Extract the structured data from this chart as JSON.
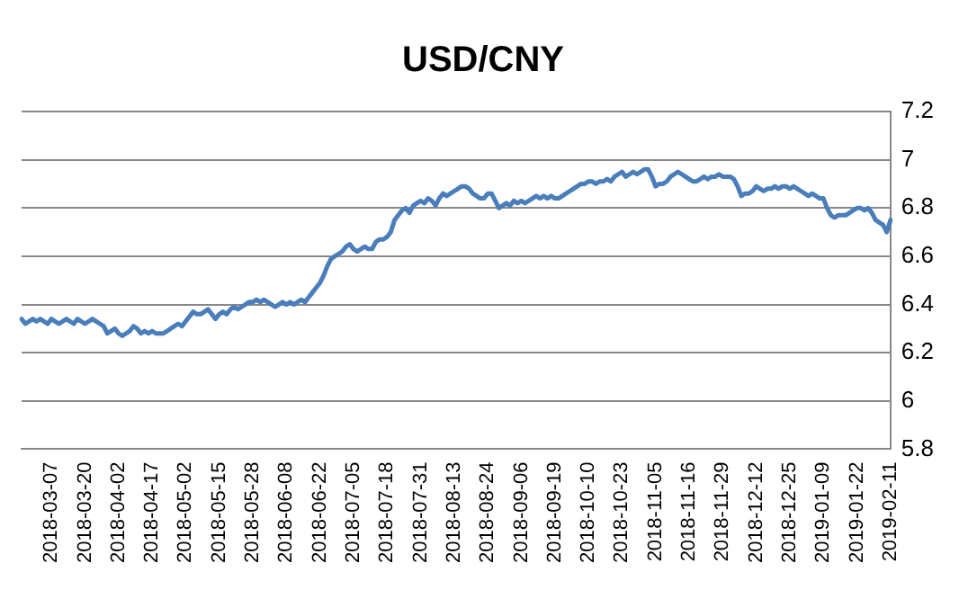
{
  "chart_data": {
    "type": "line",
    "title": "USD/CNY",
    "categories": [
      null,
      null,
      null,
      null,
      null,
      null,
      null,
      null,
      "2018-03-07",
      null,
      null,
      null,
      null,
      null,
      null,
      null,
      null,
      "2018-03-20",
      null,
      null,
      null,
      null,
      null,
      null,
      null,
      null,
      "2018-04-02",
      null,
      null,
      null,
      null,
      null,
      null,
      null,
      null,
      "2018-04-17",
      null,
      null,
      null,
      null,
      null,
      null,
      null,
      null,
      "2018-05-02",
      null,
      null,
      null,
      null,
      null,
      null,
      null,
      null,
      "2018-05-15",
      null,
      null,
      null,
      null,
      null,
      null,
      null,
      null,
      "2018-05-28",
      null,
      null,
      null,
      null,
      null,
      null,
      null,
      null,
      "2018-06-08",
      null,
      null,
      null,
      null,
      null,
      null,
      null,
      null,
      "2018-06-22",
      null,
      null,
      null,
      null,
      null,
      null,
      null,
      null,
      "2018-07-05",
      null,
      null,
      null,
      null,
      null,
      null,
      null,
      null,
      "2018-07-18",
      null,
      null,
      null,
      null,
      null,
      null,
      null,
      null,
      "2018-07-31",
      null,
      null,
      null,
      null,
      null,
      null,
      null,
      null,
      "2018-08-13",
      null,
      null,
      null,
      null,
      null,
      null,
      null,
      null,
      "2018-08-24",
      null,
      null,
      null,
      null,
      null,
      null,
      null,
      null,
      "2018-09-06",
      null,
      null,
      null,
      null,
      null,
      null,
      null,
      null,
      "2018-09-19",
      null,
      null,
      null,
      null,
      null,
      null,
      null,
      null,
      "2018-10-10",
      null,
      null,
      null,
      null,
      null,
      null,
      null,
      null,
      "2018-10-23",
      null,
      null,
      null,
      null,
      null,
      null,
      null,
      null,
      "2018-11-05",
      null,
      null,
      null,
      null,
      null,
      null,
      null,
      null,
      "2018-11-16",
      null,
      null,
      null,
      null,
      null,
      null,
      null,
      null,
      "2018-11-29",
      null,
      null,
      null,
      null,
      null,
      null,
      null,
      null,
      "2018-12-12",
      null,
      null,
      null,
      null,
      null,
      null,
      null,
      null,
      "2018-12-25",
      null,
      null,
      null,
      null,
      null,
      null,
      null,
      null,
      "2019-01-09",
      null,
      null,
      null,
      null,
      null,
      null,
      null,
      null,
      "2019-01-22",
      null,
      null,
      null,
      null,
      null,
      null,
      null,
      null,
      "2019-02-11"
    ],
    "series": [
      {
        "color": "#4a7ebb",
        "values": [
          6.34,
          6.32,
          6.33,
          6.34,
          6.33,
          6.34,
          6.33,
          6.32,
          6.34,
          6.33,
          6.32,
          6.33,
          6.34,
          6.33,
          6.32,
          6.34,
          6.33,
          6.32,
          6.33,
          6.34,
          6.33,
          6.32,
          6.31,
          6.28,
          6.29,
          6.3,
          6.28,
          6.27,
          6.28,
          6.29,
          6.31,
          6.3,
          6.28,
          6.29,
          6.28,
          6.29,
          6.28,
          6.28,
          6.28,
          6.29,
          6.3,
          6.31,
          6.32,
          6.31,
          6.33,
          6.35,
          6.37,
          6.36,
          6.36,
          6.37,
          6.38,
          6.36,
          6.34,
          6.36,
          6.37,
          6.36,
          6.38,
          6.39,
          6.38,
          6.39,
          6.4,
          6.41,
          6.41,
          6.42,
          6.41,
          6.42,
          6.41,
          6.4,
          6.39,
          6.4,
          6.41,
          6.4,
          6.41,
          6.4,
          6.41,
          6.42,
          6.41,
          6.43,
          6.45,
          6.47,
          6.49,
          6.52,
          6.56,
          6.59,
          6.6,
          6.61,
          6.62,
          6.64,
          6.65,
          6.63,
          6.62,
          6.63,
          6.64,
          6.63,
          6.63,
          6.66,
          6.67,
          6.67,
          6.68,
          6.7,
          6.75,
          6.77,
          6.79,
          6.8,
          6.78,
          6.81,
          6.82,
          6.83,
          6.82,
          6.84,
          6.83,
          6.81,
          6.84,
          6.86,
          6.85,
          6.86,
          6.87,
          6.88,
          6.89,
          6.89,
          6.88,
          6.86,
          6.85,
          6.84,
          6.84,
          6.86,
          6.86,
          6.83,
          6.8,
          6.81,
          6.82,
          6.81,
          6.83,
          6.82,
          6.83,
          6.82,
          6.83,
          6.84,
          6.85,
          6.84,
          6.85,
          6.84,
          6.85,
          6.84,
          6.84,
          6.85,
          6.86,
          6.87,
          6.88,
          6.89,
          6.9,
          6.9,
          6.91,
          6.91,
          6.9,
          6.91,
          6.91,
          6.92,
          6.91,
          6.93,
          6.94,
          6.95,
          6.93,
          6.94,
          6.95,
          6.94,
          6.95,
          6.96,
          6.96,
          6.93,
          6.89,
          6.9,
          6.9,
          6.91,
          6.93,
          6.94,
          6.95,
          6.94,
          6.93,
          6.92,
          6.91,
          6.91,
          6.92,
          6.93,
          6.92,
          6.93,
          6.93,
          6.94,
          6.93,
          6.93,
          6.93,
          6.92,
          6.89,
          6.85,
          6.86,
          6.86,
          6.87,
          6.89,
          6.88,
          6.87,
          6.88,
          6.88,
          6.89,
          6.88,
          6.89,
          6.89,
          6.88,
          6.89,
          6.88,
          6.87,
          6.86,
          6.85,
          6.86,
          6.85,
          6.84,
          6.84,
          6.8,
          6.77,
          6.76,
          6.77,
          6.77,
          6.77,
          6.78,
          6.79,
          6.8,
          6.8,
          6.79,
          6.8,
          6.78,
          6.75,
          6.74,
          6.73,
          6.7,
          6.75
        ]
      }
    ],
    "ylim": [
      5.8,
      7.2
    ],
    "yticks": [
      5.8,
      6,
      6.2,
      6.4,
      6.6,
      6.8,
      7,
      7.2
    ],
    "grid": "y",
    "legend": false,
    "marker": "none",
    "line_style": "solid"
  }
}
